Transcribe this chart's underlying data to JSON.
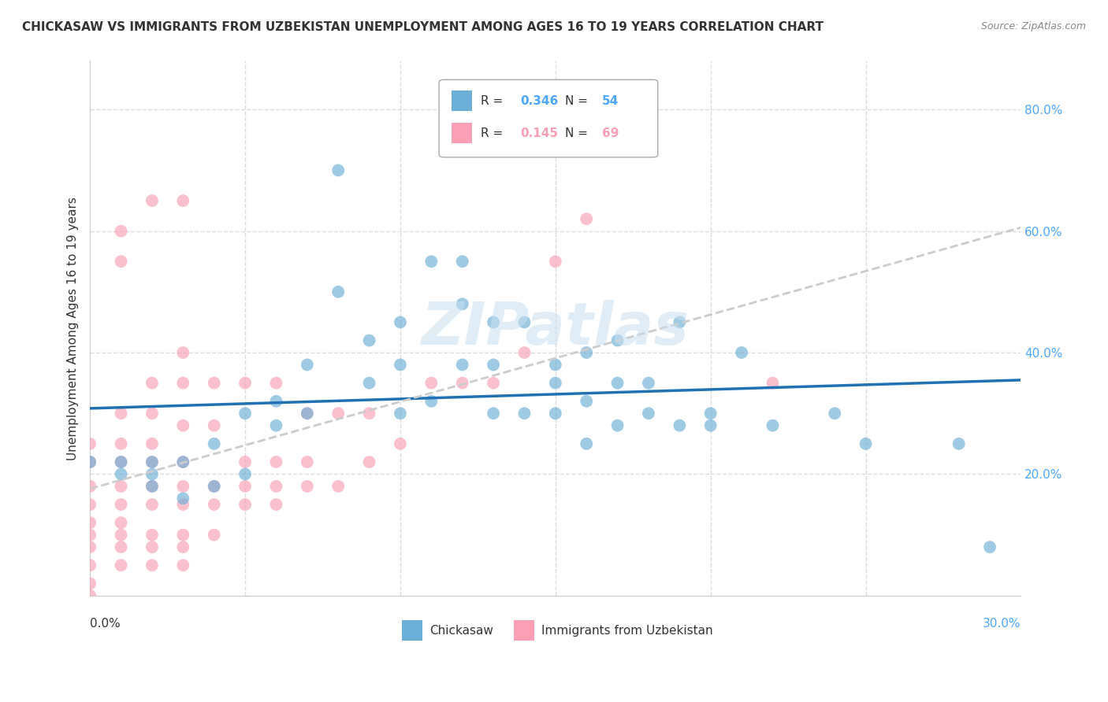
{
  "title": "CHICKASAW VS IMMIGRANTS FROM UZBEKISTAN UNEMPLOYMENT AMONG AGES 16 TO 19 YEARS CORRELATION CHART",
  "source": "Source: ZipAtlas.com",
  "ylabel": "Unemployment Among Ages 16 to 19 years",
  "ylim": [
    0.0,
    0.88
  ],
  "xlim": [
    0.0,
    0.3
  ],
  "watermark": "ZIPatlas",
  "blue_color": "#6baed6",
  "pink_color": "#fa9fb5",
  "blue_line_color": "#2171b5",
  "pink_line_color": "#cccccc",
  "background_color": "#ffffff",
  "grid_color": "#dddddd",
  "legend_blue_R": "0.346",
  "legend_blue_N": "54",
  "legend_pink_R": "0.145",
  "legend_pink_N": "69",
  "chickasaw_x": [
    0.0,
    0.01,
    0.01,
    0.02,
    0.02,
    0.02,
    0.03,
    0.03,
    0.04,
    0.04,
    0.05,
    0.05,
    0.06,
    0.06,
    0.07,
    0.07,
    0.08,
    0.08,
    0.09,
    0.09,
    0.1,
    0.1,
    0.1,
    0.11,
    0.11,
    0.12,
    0.12,
    0.12,
    0.13,
    0.13,
    0.13,
    0.14,
    0.14,
    0.15,
    0.15,
    0.15,
    0.16,
    0.16,
    0.16,
    0.17,
    0.17,
    0.17,
    0.18,
    0.18,
    0.19,
    0.19,
    0.2,
    0.2,
    0.21,
    0.22,
    0.24,
    0.25,
    0.28,
    0.29
  ],
  "chickasaw_y": [
    0.22,
    0.2,
    0.22,
    0.18,
    0.2,
    0.22,
    0.16,
    0.22,
    0.25,
    0.18,
    0.3,
    0.2,
    0.28,
    0.32,
    0.3,
    0.38,
    0.7,
    0.5,
    0.35,
    0.42,
    0.3,
    0.45,
    0.38,
    0.55,
    0.32,
    0.48,
    0.38,
    0.55,
    0.45,
    0.3,
    0.38,
    0.45,
    0.3,
    0.35,
    0.38,
    0.3,
    0.25,
    0.32,
    0.4,
    0.42,
    0.35,
    0.28,
    0.3,
    0.35,
    0.28,
    0.45,
    0.3,
    0.28,
    0.4,
    0.28,
    0.3,
    0.25,
    0.25,
    0.08
  ],
  "uzbek_x": [
    0.0,
    0.0,
    0.0,
    0.0,
    0.0,
    0.0,
    0.0,
    0.0,
    0.0,
    0.0,
    0.01,
    0.01,
    0.01,
    0.01,
    0.01,
    0.01,
    0.01,
    0.01,
    0.01,
    0.01,
    0.02,
    0.02,
    0.02,
    0.02,
    0.02,
    0.02,
    0.02,
    0.02,
    0.02,
    0.02,
    0.03,
    0.03,
    0.03,
    0.03,
    0.03,
    0.03,
    0.03,
    0.03,
    0.03,
    0.03,
    0.04,
    0.04,
    0.04,
    0.04,
    0.04,
    0.05,
    0.05,
    0.05,
    0.05,
    0.06,
    0.06,
    0.06,
    0.06,
    0.07,
    0.07,
    0.07,
    0.08,
    0.08,
    0.09,
    0.09,
    0.1,
    0.11,
    0.12,
    0.13,
    0.14,
    0.15,
    0.16,
    0.22,
    0.01
  ],
  "uzbek_y": [
    0.0,
    0.02,
    0.05,
    0.08,
    0.1,
    0.12,
    0.15,
    0.18,
    0.22,
    0.25,
    0.05,
    0.08,
    0.1,
    0.12,
    0.15,
    0.18,
    0.22,
    0.25,
    0.3,
    0.6,
    0.05,
    0.08,
    0.1,
    0.15,
    0.18,
    0.22,
    0.25,
    0.3,
    0.35,
    0.65,
    0.05,
    0.08,
    0.1,
    0.15,
    0.18,
    0.22,
    0.28,
    0.35,
    0.4,
    0.65,
    0.1,
    0.15,
    0.18,
    0.28,
    0.35,
    0.15,
    0.18,
    0.22,
    0.35,
    0.15,
    0.18,
    0.22,
    0.35,
    0.18,
    0.22,
    0.3,
    0.18,
    0.3,
    0.22,
    0.3,
    0.25,
    0.35,
    0.35,
    0.35,
    0.4,
    0.55,
    0.62,
    0.35,
    0.55
  ]
}
